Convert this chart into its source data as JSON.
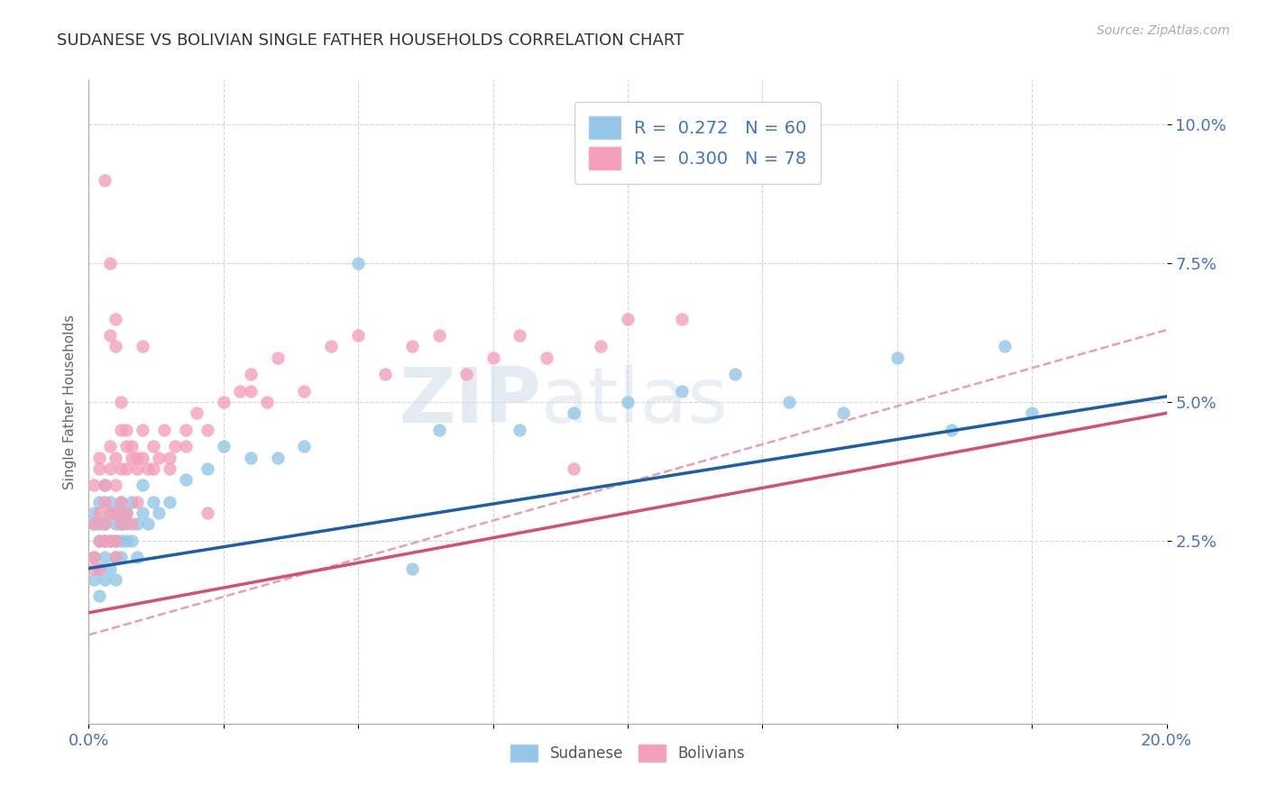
{
  "title": "SUDANESE VS BOLIVIAN SINGLE FATHER HOUSEHOLDS CORRELATION CHART",
  "source_text": "Source: ZipAtlas.com",
  "ylabel": "Single Father Households",
  "xlim": [
    0.0,
    0.2
  ],
  "ylim": [
    -0.008,
    0.108
  ],
  "xticks": [
    0.0,
    0.025,
    0.05,
    0.075,
    0.1,
    0.125,
    0.15,
    0.175,
    0.2
  ],
  "xticklabels_show": [
    "0.0%",
    "20.0%"
  ],
  "yticks": [
    0.025,
    0.05,
    0.075,
    0.1
  ],
  "yticklabels": [
    "2.5%",
    "5.0%",
    "7.5%",
    "10.0%"
  ],
  "sudanese_color": "#93c6e8",
  "bolivian_color": "#f4a0b8",
  "trend_sudanese_color": "#1a5fa8",
  "trend_bolivian_color": "#d45070",
  "trend_dashed_color": "#e8a0b0",
  "watermark_zip": "ZIP",
  "watermark_atlas": "atlas",
  "title_fontsize": 13,
  "sudanese_x": [
    0.001,
    0.001,
    0.001,
    0.001,
    0.002,
    0.002,
    0.002,
    0.002,
    0.002,
    0.003,
    0.003,
    0.003,
    0.003,
    0.003,
    0.004,
    0.004,
    0.004,
    0.004,
    0.005,
    0.005,
    0.005,
    0.005,
    0.005,
    0.006,
    0.006,
    0.006,
    0.006,
    0.007,
    0.007,
    0.007,
    0.008,
    0.008,
    0.009,
    0.009,
    0.01,
    0.01,
    0.011,
    0.012,
    0.013,
    0.015,
    0.018,
    0.022,
    0.025,
    0.03,
    0.035,
    0.04,
    0.05,
    0.06,
    0.065,
    0.08,
    0.09,
    0.1,
    0.11,
    0.12,
    0.13,
    0.14,
    0.15,
    0.16,
    0.17,
    0.175
  ],
  "sudanese_y": [
    0.028,
    0.022,
    0.03,
    0.018,
    0.025,
    0.032,
    0.02,
    0.028,
    0.015,
    0.025,
    0.028,
    0.022,
    0.035,
    0.018,
    0.03,
    0.025,
    0.02,
    0.032,
    0.028,
    0.022,
    0.03,
    0.025,
    0.018,
    0.032,
    0.028,
    0.025,
    0.022,
    0.03,
    0.025,
    0.028,
    0.032,
    0.025,
    0.028,
    0.022,
    0.035,
    0.03,
    0.028,
    0.032,
    0.03,
    0.032,
    0.036,
    0.038,
    0.042,
    0.04,
    0.04,
    0.042,
    0.075,
    0.02,
    0.045,
    0.045,
    0.048,
    0.05,
    0.052,
    0.055,
    0.05,
    0.048,
    0.058,
    0.045,
    0.06,
    0.048
  ],
  "bolivian_x": [
    0.001,
    0.001,
    0.001,
    0.001,
    0.002,
    0.002,
    0.002,
    0.002,
    0.002,
    0.003,
    0.003,
    0.003,
    0.003,
    0.004,
    0.004,
    0.004,
    0.004,
    0.005,
    0.005,
    0.005,
    0.005,
    0.005,
    0.006,
    0.006,
    0.006,
    0.006,
    0.007,
    0.007,
    0.007,
    0.008,
    0.008,
    0.009,
    0.009,
    0.01,
    0.01,
    0.011,
    0.012,
    0.013,
    0.014,
    0.015,
    0.016,
    0.018,
    0.02,
    0.022,
    0.025,
    0.028,
    0.03,
    0.033,
    0.035,
    0.04,
    0.045,
    0.05,
    0.055,
    0.06,
    0.065,
    0.07,
    0.075,
    0.08,
    0.085,
    0.09,
    0.095,
    0.1,
    0.11,
    0.003,
    0.004,
    0.004,
    0.005,
    0.005,
    0.006,
    0.007,
    0.008,
    0.009,
    0.01,
    0.012,
    0.015,
    0.018,
    0.022,
    0.03
  ],
  "bolivian_y": [
    0.028,
    0.022,
    0.035,
    0.02,
    0.03,
    0.025,
    0.04,
    0.02,
    0.038,
    0.032,
    0.028,
    0.035,
    0.025,
    0.042,
    0.03,
    0.025,
    0.038,
    0.03,
    0.035,
    0.025,
    0.04,
    0.022,
    0.038,
    0.032,
    0.028,
    0.045,
    0.038,
    0.03,
    0.042,
    0.028,
    0.04,
    0.032,
    0.038,
    0.04,
    0.045,
    0.038,
    0.042,
    0.04,
    0.045,
    0.038,
    0.042,
    0.045,
    0.048,
    0.045,
    0.05,
    0.052,
    0.055,
    0.05,
    0.058,
    0.052,
    0.06,
    0.062,
    0.055,
    0.06,
    0.062,
    0.055,
    0.058,
    0.062,
    0.058,
    0.038,
    0.06,
    0.065,
    0.065,
    0.09,
    0.075,
    0.062,
    0.06,
    0.065,
    0.05,
    0.045,
    0.042,
    0.04,
    0.06,
    0.038,
    0.04,
    0.042,
    0.03,
    0.052
  ]
}
